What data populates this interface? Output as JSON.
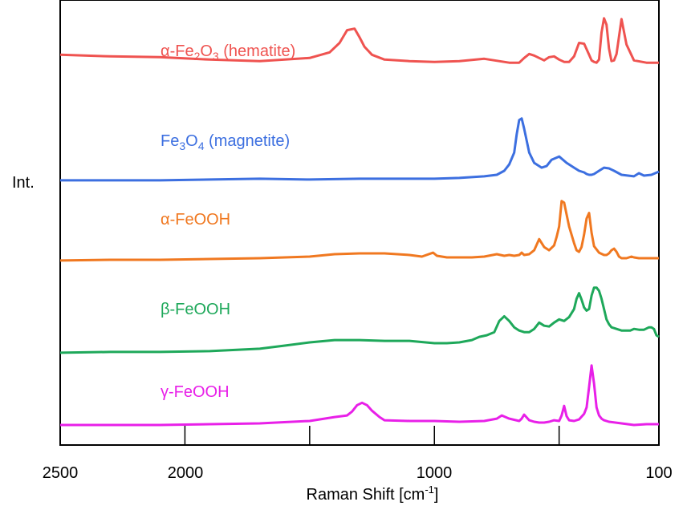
{
  "chart_data": {
    "type": "line",
    "xlabel": "Raman Shift [cm",
    "xlabel_sup": "-1",
    "xlabel_end": "]",
    "ylabel": "Int.",
    "xlim": [
      2500,
      100
    ],
    "x_reversed": true,
    "x_tick_labels": [
      "2500",
      "2000",
      "1000",
      "100"
    ],
    "x_major_ticks": [
      2000,
      1500,
      1000,
      500
    ],
    "grid": false,
    "legend": "inline-labels",
    "series": [
      {
        "name_parts": [
          {
            "t": "α-Fe",
            "sub": false
          },
          {
            "t": "2",
            "sub": true
          },
          {
            "t": "O",
            "sub": false
          },
          {
            "t": "3",
            "sub": true
          },
          {
            "t": " (hematite)",
            "sub": false
          }
        ],
        "color": "#ef5350",
        "x": [
          2500,
          2300,
          2100,
          1900,
          1700,
          1500,
          1420,
          1380,
          1350,
          1320,
          1300,
          1280,
          1250,
          1200,
          1100,
          1000,
          900,
          800,
          700,
          660,
          640,
          620,
          600,
          560,
          540,
          520,
          500,
          480,
          460,
          440,
          420,
          400,
          380,
          370,
          360,
          350,
          340,
          330,
          320,
          310,
          300,
          290,
          280,
          270,
          250,
          230,
          200,
          150,
          100
        ],
        "y": [
          0.82,
          0.8,
          0.79,
          0.76,
          0.74,
          0.78,
          0.85,
          0.97,
          1.13,
          1.15,
          1.04,
          0.92,
          0.82,
          0.76,
          0.74,
          0.73,
          0.74,
          0.77,
          0.72,
          0.72,
          0.78,
          0.83,
          0.81,
          0.75,
          0.79,
          0.8,
          0.76,
          0.73,
          0.73,
          0.8,
          0.97,
          0.96,
          0.82,
          0.75,
          0.73,
          0.72,
          0.76,
          1.1,
          1.28,
          1.2,
          0.9,
          0.74,
          0.75,
          0.83,
          1.27,
          0.95,
          0.75,
          0.72,
          0.72
        ]
      },
      {
        "name_parts": [
          {
            "t": "Fe",
            "sub": false
          },
          {
            "t": "3",
            "sub": true
          },
          {
            "t": "O",
            "sub": false
          },
          {
            "t": "4",
            "sub": true
          },
          {
            "t": " (magnetite)",
            "sub": false
          }
        ],
        "color": "#3c6fe0",
        "x": [
          2500,
          2300,
          2100,
          1900,
          1700,
          1500,
          1300,
          1100,
          1000,
          900,
          800,
          750,
          720,
          700,
          680,
          670,
          660,
          650,
          640,
          620,
          600,
          570,
          550,
          530,
          500,
          470,
          440,
          420,
          400,
          390,
          380,
          370,
          360,
          340,
          320,
          300,
          280,
          250,
          200,
          180,
          160,
          130,
          100
        ],
        "y": [
          0.4,
          0.4,
          0.4,
          0.41,
          0.42,
          0.41,
          0.42,
          0.42,
          0.42,
          0.43,
          0.45,
          0.47,
          0.52,
          0.6,
          0.75,
          0.98,
          1.16,
          1.18,
          1.05,
          0.75,
          0.62,
          0.56,
          0.58,
          0.66,
          0.7,
          0.62,
          0.56,
          0.52,
          0.5,
          0.48,
          0.47,
          0.47,
          0.48,
          0.52,
          0.56,
          0.55,
          0.52,
          0.47,
          0.45,
          0.49,
          0.46,
          0.47,
          0.51
        ]
      },
      {
        "name_parts": [
          {
            "t": "α-FeOOH",
            "sub": false
          }
        ],
        "color": "#f07820",
        "x": [
          2500,
          2300,
          2100,
          1900,
          1700,
          1500,
          1400,
          1300,
          1200,
          1100,
          1050,
          1005,
          990,
          950,
          900,
          850,
          800,
          750,
          720,
          700,
          680,
          660,
          650,
          640,
          620,
          600,
          580,
          560,
          540,
          520,
          510,
          500,
          490,
          480,
          460,
          440,
          430,
          420,
          410,
          400,
          390,
          380,
          370,
          360,
          340,
          320,
          310,
          300,
          290,
          280,
          270,
          260,
          250,
          240,
          230,
          220,
          210,
          200,
          180,
          150,
          100
        ],
        "y": [
          0.45,
          0.46,
          0.46,
          0.47,
          0.48,
          0.5,
          0.53,
          0.54,
          0.54,
          0.52,
          0.5,
          0.55,
          0.51,
          0.49,
          0.49,
          0.49,
          0.5,
          0.53,
          0.51,
          0.52,
          0.51,
          0.52,
          0.55,
          0.52,
          0.53,
          0.58,
          0.72,
          0.62,
          0.58,
          0.64,
          0.75,
          0.88,
          1.2,
          1.18,
          0.88,
          0.67,
          0.58,
          0.56,
          0.62,
          0.78,
          0.98,
          1.05,
          0.8,
          0.63,
          0.55,
          0.52,
          0.52,
          0.54,
          0.58,
          0.6,
          0.56,
          0.5,
          0.48,
          0.48,
          0.48,
          0.49,
          0.5,
          0.49,
          0.48,
          0.48,
          0.48
        ]
      },
      {
        "name_parts": [
          {
            "t": "β-FeOOH",
            "sub": false
          }
        ],
        "color": "#1ea85a",
        "x": [
          2500,
          2300,
          2100,
          1900,
          1700,
          1600,
          1500,
          1400,
          1300,
          1200,
          1100,
          1000,
          950,
          900,
          850,
          820,
          790,
          760,
          740,
          720,
          700,
          680,
          660,
          640,
          620,
          600,
          580,
          560,
          540,
          520,
          500,
          480,
          460,
          440,
          430,
          420,
          410,
          400,
          390,
          380,
          370,
          360,
          350,
          340,
          330,
          320,
          310,
          300,
          290,
          270,
          250,
          230,
          215,
          200,
          180,
          160,
          140,
          130,
          120,
          110,
          100
        ],
        "y": [
          0.4,
          0.41,
          0.41,
          0.42,
          0.45,
          0.49,
          0.53,
          0.56,
          0.56,
          0.55,
          0.55,
          0.52,
          0.52,
          0.53,
          0.56,
          0.6,
          0.62,
          0.66,
          0.8,
          0.86,
          0.8,
          0.72,
          0.68,
          0.66,
          0.66,
          0.7,
          0.78,
          0.74,
          0.73,
          0.78,
          0.82,
          0.8,
          0.85,
          0.95,
          1.08,
          1.15,
          1.07,
          0.97,
          0.93,
          0.95,
          1.12,
          1.22,
          1.22,
          1.18,
          1.08,
          0.95,
          0.82,
          0.76,
          0.72,
          0.7,
          0.68,
          0.68,
          0.68,
          0.7,
          0.69,
          0.69,
          0.72,
          0.72,
          0.7,
          0.62,
          0.6
        ]
      },
      {
        "name_parts": [
          {
            "t": "γ-FeOOH",
            "sub": false
          }
        ],
        "color": "#e820e8",
        "x": [
          2500,
          2300,
          2100,
          1900,
          1700,
          1500,
          1400,
          1350,
          1330,
          1310,
          1290,
          1270,
          1250,
          1220,
          1200,
          1100,
          1000,
          900,
          800,
          750,
          730,
          700,
          660,
          650,
          640,
          620,
          600,
          580,
          560,
          540,
          520,
          500,
          490,
          480,
          470,
          460,
          440,
          420,
          400,
          390,
          380,
          370,
          360,
          350,
          340,
          330,
          320,
          300,
          250,
          200,
          150,
          100
        ],
        "y": [
          0.5,
          0.5,
          0.5,
          0.51,
          0.52,
          0.55,
          0.6,
          0.62,
          0.67,
          0.75,
          0.78,
          0.75,
          0.68,
          0.6,
          0.56,
          0.55,
          0.55,
          0.54,
          0.55,
          0.58,
          0.62,
          0.58,
          0.55,
          0.58,
          0.63,
          0.56,
          0.54,
          0.53,
          0.53,
          0.54,
          0.56,
          0.55,
          0.62,
          0.74,
          0.61,
          0.56,
          0.55,
          0.57,
          0.64,
          0.72,
          0.98,
          1.25,
          1.02,
          0.72,
          0.62,
          0.58,
          0.56,
          0.54,
          0.52,
          0.5,
          0.51,
          0.51
        ]
      }
    ]
  }
}
